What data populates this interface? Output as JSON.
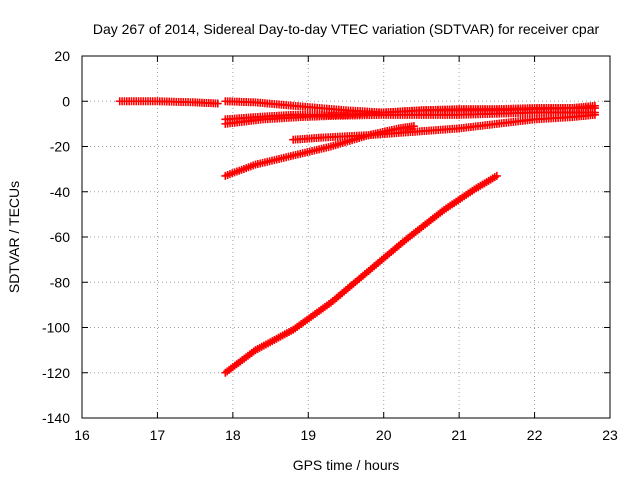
{
  "chart_data": {
    "type": "scatter",
    "title": "Day 267 of 2014, Sidereal Day-to-day VTEC variation (SDTVAR) for receiver cpar",
    "xlabel": "GPS time / hours",
    "ylabel": "SDTVAR / TECUs",
    "xlim": [
      16,
      23
    ],
    "ylim": [
      -140,
      20
    ],
    "xticks": [
      "16",
      "17",
      "18",
      "19",
      "20",
      "21",
      "22",
      "23"
    ],
    "yticks": [
      "-140",
      "-120",
      "-100",
      "-80",
      "-60",
      "-40",
      "-20",
      "0",
      "20"
    ],
    "grid": true,
    "legend": "none",
    "marker": "plus",
    "color": "#ff0000",
    "series": [
      {
        "x": [
          16.5,
          17.0,
          17.5,
          17.8
        ],
        "y": [
          0,
          0,
          -0.5,
          -1
        ]
      },
      {
        "x": [
          17.9,
          18.3,
          18.8,
          19.5,
          20.0,
          20.5,
          21.0,
          21.5,
          22.0,
          22.5,
          22.8
        ],
        "y": [
          0,
          -0.5,
          -2,
          -4,
          -5,
          -4,
          -3.5,
          -3.5,
          -3,
          -3,
          -3
        ]
      },
      {
        "x": [
          17.9,
          18.3,
          18.8,
          19.5,
          20.0,
          20.5,
          21.0,
          21.5,
          22.0,
          22.5,
          22.8
        ],
        "y": [
          -8,
          -7,
          -6,
          -6,
          -5,
          -4,
          -4,
          -4,
          -3.5,
          -3,
          -2
        ]
      },
      {
        "x": [
          17.9,
          18.4,
          18.9,
          19.3,
          20.0,
          20.5,
          21.0,
          21.5,
          22.0,
          22.5,
          22.8
        ],
        "y": [
          -10,
          -8,
          -7,
          -6.5,
          -6,
          -6,
          -6,
          -5.5,
          -5,
          -5,
          -5
        ]
      },
      {
        "x": [
          18.8,
          19.2,
          19.8,
          20.2,
          20.6,
          21.0,
          21.5,
          22.0,
          22.5,
          22.8
        ],
        "y": [
          -17,
          -16,
          -15,
          -14,
          -13,
          -12,
          -10,
          -8,
          -7,
          -6
        ]
      },
      {
        "x": [
          17.9,
          18.3,
          18.8,
          19.3,
          19.8,
          20.2,
          20.4
        ],
        "y": [
          -33,
          -28,
          -24,
          -20,
          -15,
          -12,
          -11
        ]
      },
      {
        "x": [
          17.9,
          18.3,
          18.8,
          19.3,
          19.8,
          20.3,
          20.8,
          21.2,
          21.5
        ],
        "y": [
          -120,
          -110,
          -101,
          -89,
          -75,
          -61,
          -48,
          -39,
          -33
        ]
      }
    ]
  }
}
